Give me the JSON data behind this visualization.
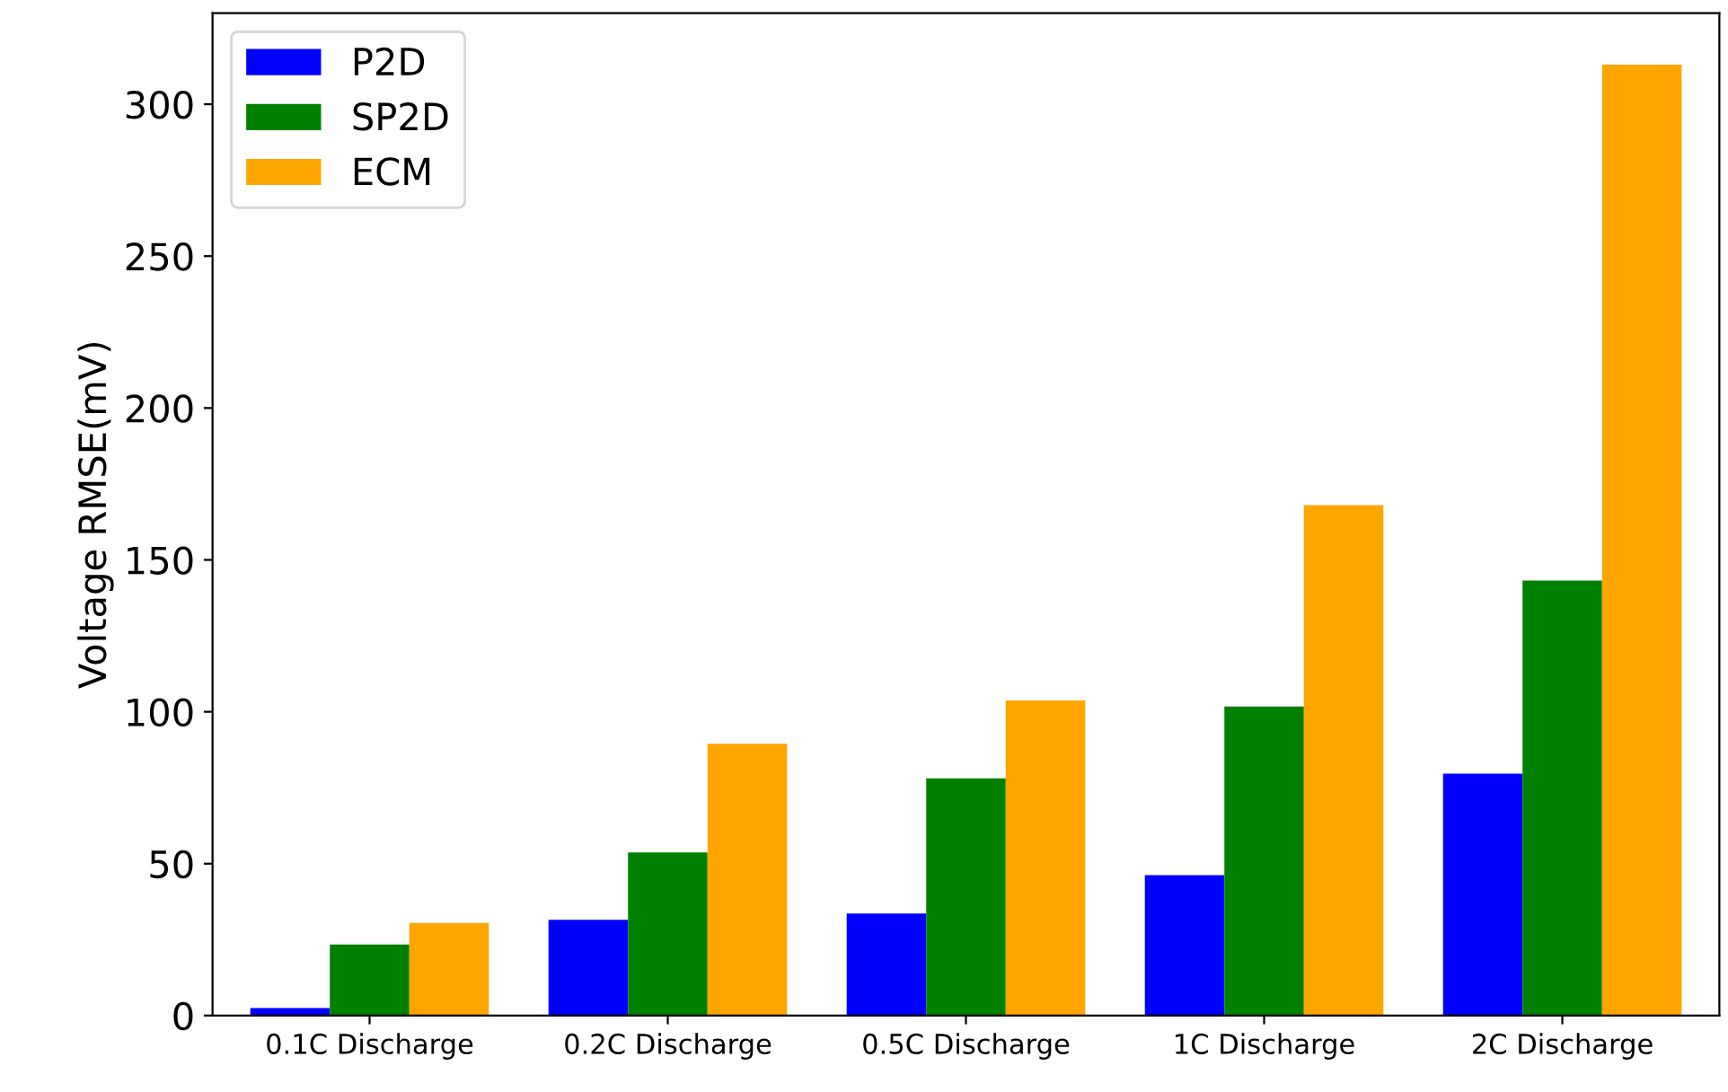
{
  "chart_data": {
    "type": "bar",
    "ylabel": "Voltage RMSE(mV)",
    "categories": [
      "0.1C Discharge",
      "0.2C Discharge",
      "0.5C Discharge",
      "1C Discharge",
      "2C Discharge"
    ],
    "series": [
      {
        "name": "P2D",
        "color": "#0000ff",
        "values": [
          2.5,
          31.5,
          33.6,
          46.2,
          79.6
        ]
      },
      {
        "name": "SP2D",
        "color": "#008000",
        "values": [
          23.4,
          53.7,
          78.1,
          101.7,
          143.2
        ]
      },
      {
        "name": "ECM",
        "color": "#ffa500",
        "values": [
          30.5,
          89.5,
          103.7,
          168,
          313
        ]
      }
    ],
    "ylim": [
      0,
      330
    ],
    "yticks": [
      0,
      50,
      100,
      150,
      200,
      250,
      300
    ],
    "grid": false,
    "legend": "top left"
  }
}
